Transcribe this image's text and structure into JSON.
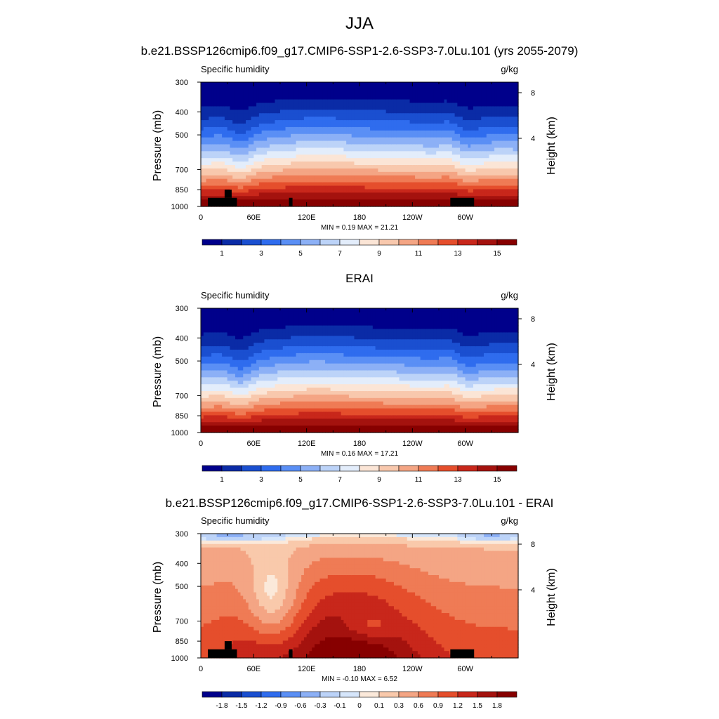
{
  "figure": {
    "title": "JJA"
  },
  "colors": {
    "abs_levels_palette": [
      "#00008b",
      "#0a2ba6",
      "#1a4fd0",
      "#2f6cee",
      "#5a8ff5",
      "#8cb0f6",
      "#bcd3f8",
      "#e3edfb",
      "#fbe5d6",
      "#f8c8ad",
      "#f4a584",
      "#ef7b55",
      "#e54e2c",
      "#c8271b",
      "#a4120e",
      "#870000"
    ],
    "diff_palette": [
      "#00008b",
      "#0a2ba6",
      "#1a4fd0",
      "#2f6cee",
      "#5a8ff5",
      "#8cb0f6",
      "#bcd3f8",
      "#d6e6fb",
      "#fbe9da",
      "#f9c9ab",
      "#f4a584",
      "#ef7b55",
      "#e54e2c",
      "#c8271b",
      "#a4120e",
      "#870000"
    ]
  },
  "chart_data": [
    {
      "type": "heatmap",
      "title": "b.e21.BSSP126cmip6.f09_g17.CMIP6-SSP1-2.6-SSP3-7.0Lu.101 (yrs 2055-2079)",
      "left_string": "Specific humidity",
      "right_string": "g/kg",
      "ylabel": "Pressure (mb)",
      "ylabel_right": "Height (km)",
      "x_ticks": [
        "0",
        "60E",
        "120E",
        "180",
        "120W",
        "60W"
      ],
      "y_ticks": [
        "300",
        "400",
        "500",
        "700",
        "850",
        "1000"
      ],
      "y_ticks_right": [
        "8",
        "4"
      ],
      "stats": "MIN =   0.19  MAX =  21.21",
      "colorbar_labels": [
        "1",
        "3",
        "5",
        "7",
        "9",
        "11",
        "13",
        "15"
      ],
      "field": "absolute",
      "terrain": true
    },
    {
      "type": "heatmap",
      "title": "ERAI",
      "left_string": "Specific humidity",
      "right_string": "g/kg",
      "ylabel": "Pressure (mb)",
      "ylabel_right": "Height (km)",
      "x_ticks": [
        "0",
        "60E",
        "120E",
        "180",
        "120W",
        "60W"
      ],
      "y_ticks": [
        "300",
        "400",
        "500",
        "700",
        "850",
        "1000"
      ],
      "y_ticks_right": [
        "8",
        "4"
      ],
      "stats": "MIN =   0.16  MAX =  17.21",
      "colorbar_labels": [
        "1",
        "3",
        "5",
        "7",
        "9",
        "11",
        "13",
        "15"
      ],
      "field": "absolute",
      "terrain": false
    },
    {
      "type": "heatmap",
      "title": "b.e21.BSSP126cmip6.f09_g17.CMIP6-SSP1-2.6-SSP3-7.0Lu.101 - ERAI",
      "left_string": "Specific humidity",
      "right_string": "g/kg",
      "ylabel": "Pressure (mb)",
      "ylabel_right": "Height (km)",
      "x_ticks": [
        "0",
        "60E",
        "120E",
        "180",
        "120W",
        "60W"
      ],
      "y_ticks": [
        "300",
        "400",
        "500",
        "700",
        "850",
        "1000"
      ],
      "y_ticks_right": [
        "8",
        "4"
      ],
      "stats": "MIN =  -0.10  MAX =   6.52",
      "colorbar_labels": [
        "-1.8",
        "-1.5",
        "-1.2",
        "-0.9",
        "-0.6",
        "-0.3",
        "-0.1",
        "0",
        "0.1",
        "0.3",
        "0.6",
        "0.9",
        "1.2",
        "1.5",
        "1.8"
      ],
      "field": "difference",
      "terrain": true
    }
  ]
}
